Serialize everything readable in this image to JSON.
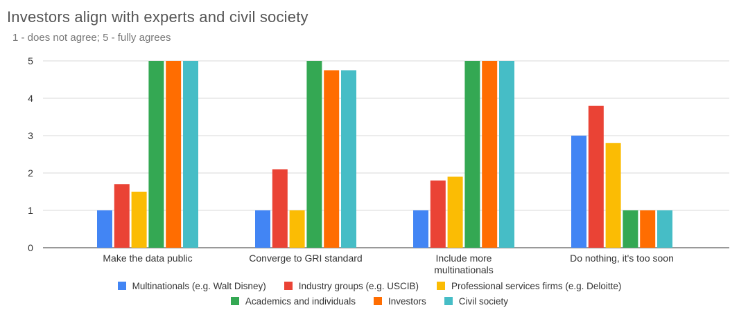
{
  "chart_data": {
    "type": "bar",
    "title": "Investors align with experts and civil society",
    "subtitle": "1 - does not agree; 5 - fully agrees",
    "xlabel": "",
    "ylabel": "",
    "ylim": [
      0,
      5
    ],
    "yticks": [
      "0",
      "1",
      "2",
      "3",
      "4",
      "5"
    ],
    "grid": true,
    "legend_position": "bottom",
    "categories": [
      [
        "Make the data public"
      ],
      [
        "Converge to GRI standard"
      ],
      [
        "Include more",
        "multinationals"
      ],
      [
        "Do nothing, it's too soon"
      ]
    ],
    "series": [
      {
        "name": "Multinationals (e.g. Walt Disney)",
        "color": "#4285f4",
        "values": [
          1,
          1,
          1,
          3
        ]
      },
      {
        "name": "Industry groups (e.g. USCIB)",
        "color": "#ea4335",
        "values": [
          1.7,
          2.1,
          1.8,
          3.8
        ]
      },
      {
        "name": "Professional services firms (e.g. Deloitte)",
        "color": "#fbbc04",
        "values": [
          1.5,
          1,
          1.9,
          2.8
        ]
      },
      {
        "name": "Academics and individuals",
        "color": "#34a853",
        "values": [
          5,
          5,
          5,
          1
        ]
      },
      {
        "name": "Investors",
        "color": "#ff6d01",
        "values": [
          5,
          4.75,
          5,
          1
        ]
      },
      {
        "name": "Civil society",
        "color": "#46bdc6",
        "values": [
          5,
          4.75,
          5,
          1
        ]
      }
    ]
  }
}
